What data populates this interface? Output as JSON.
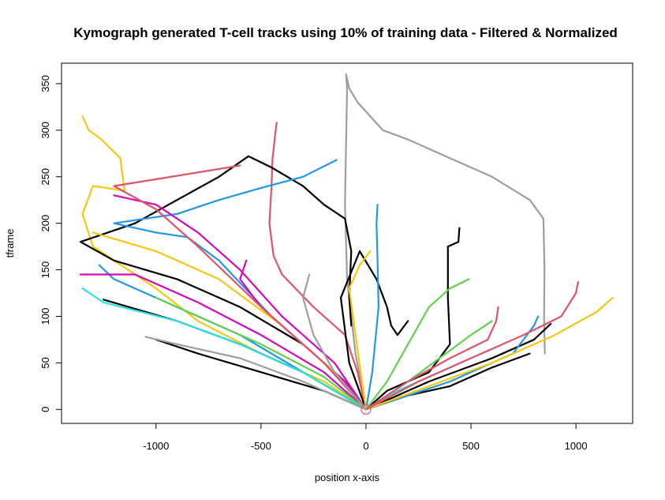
{
  "chart_data": {
    "type": "line",
    "title": "Kymograph generated T-cell tracks using 10% of training data - Filtered & Normalized",
    "xlabel": "position x-axis",
    "ylabel": "tframe",
    "xlim": [
      -1450,
      1270
    ],
    "ylim": [
      -15,
      372
    ],
    "xticks": [
      -1000,
      -500,
      0,
      500,
      1000
    ],
    "yticks": [
      0,
      50,
      100,
      150,
      200,
      250,
      300,
      350
    ],
    "grid": false,
    "legend": "none",
    "origin_marker": {
      "x": 0,
      "y": 0,
      "color": "#DF536B"
    },
    "series": [
      {
        "color": "#9E9E9E",
        "points": [
          [
            0,
            0
          ],
          [
            -50,
            60
          ],
          [
            -90,
            140
          ],
          [
            -100,
            220
          ],
          [
            -90,
            345
          ],
          [
            -95,
            360
          ],
          [
            -80,
            345
          ],
          [
            -40,
            330
          ],
          [
            80,
            300
          ],
          [
            200,
            290
          ],
          [
            400,
            270
          ],
          [
            600,
            250
          ],
          [
            780,
            225
          ],
          [
            845,
            205
          ],
          [
            850,
            150
          ],
          [
            848,
            100
          ],
          [
            852,
            60
          ]
        ]
      },
      {
        "color": "#DF536B",
        "points": [
          [
            0,
            0
          ],
          [
            -40,
            40
          ],
          [
            -100,
            80
          ],
          [
            -250,
            110
          ],
          [
            -400,
            145
          ],
          [
            -440,
            165
          ],
          [
            -460,
            200
          ],
          [
            -450,
            240
          ],
          [
            -445,
            270
          ],
          [
            -430,
            300
          ],
          [
            -425,
            308
          ]
        ]
      },
      {
        "color": "#F5C710",
        "points": [
          [
            0,
            0
          ],
          [
            -200,
            30
          ],
          [
            -500,
            60
          ],
          [
            -800,
            95
          ],
          [
            -1000,
            130
          ],
          [
            -1300,
            175
          ],
          [
            -1350,
            210
          ],
          [
            -1300,
            240
          ],
          [
            -1150,
            235
          ],
          [
            -1170,
            270
          ],
          [
            -1260,
            290
          ],
          [
            -1320,
            300
          ],
          [
            -1350,
            315
          ]
        ]
      },
      {
        "color": "#000000",
        "points": [
          [
            0,
            0
          ],
          [
            -100,
            30
          ],
          [
            -300,
            70
          ],
          [
            -600,
            110
          ],
          [
            -900,
            140
          ],
          [
            -1200,
            160
          ],
          [
            -1360,
            180
          ],
          [
            -1100,
            200
          ],
          [
            -900,
            225
          ],
          [
            -700,
            250
          ],
          [
            -560,
            272
          ],
          [
            -450,
            260
          ],
          [
            -300,
            240
          ],
          [
            -200,
            220
          ],
          [
            -100,
            205
          ],
          [
            -70,
            170
          ],
          [
            -80,
            120
          ],
          [
            -70,
            90
          ]
        ]
      },
      {
        "color": "#000000",
        "points": [
          [
            0,
            0
          ],
          [
            -80,
            50
          ],
          [
            -120,
            120
          ],
          [
            -30,
            170
          ],
          [
            50,
            140
          ],
          [
            100,
            110
          ],
          [
            120,
            90
          ],
          [
            150,
            80
          ],
          [
            200,
            95
          ]
        ]
      },
      {
        "color": "#000000",
        "points": [
          [
            0,
            0
          ],
          [
            100,
            20
          ],
          [
            300,
            40
          ],
          [
            400,
            70
          ],
          [
            390,
            120
          ],
          [
            390,
            175
          ],
          [
            440,
            180
          ],
          [
            445,
            195
          ]
        ]
      },
      {
        "color": "#000000",
        "points": [
          [
            0,
            0
          ],
          [
            200,
            15
          ],
          [
            400,
            25
          ],
          [
            600,
            45
          ],
          [
            780,
            60
          ]
        ]
      },
      {
        "color": "#000000",
        "points": [
          [
            0,
            0
          ],
          [
            -300,
            40
          ],
          [
            -600,
            70
          ],
          [
            -900,
            95
          ],
          [
            -1250,
            118
          ]
        ]
      },
      {
        "color": "#000000",
        "points": [
          [
            0,
            0
          ],
          [
            -200,
            20
          ],
          [
            -500,
            40
          ],
          [
            -800,
            60
          ],
          [
            -1000,
            75
          ]
        ]
      },
      {
        "color": "#000000",
        "points": [
          [
            0,
            0
          ],
          [
            300,
            30
          ],
          [
            600,
            55
          ],
          [
            800,
            75
          ],
          [
            880,
            92
          ]
        ]
      },
      {
        "color": "#2297E6",
        "points": [
          [
            0,
            0
          ],
          [
            30,
            40
          ],
          [
            60,
            110
          ],
          [
            55,
            160
          ],
          [
            50,
            200
          ],
          [
            55,
            220
          ]
        ]
      },
      {
        "color": "#2297E6",
        "points": [
          [
            0,
            0
          ],
          [
            -200,
            50
          ],
          [
            -450,
            100
          ],
          [
            -700,
            160
          ],
          [
            -850,
            185
          ],
          [
            -1000,
            190
          ],
          [
            -1200,
            200
          ],
          [
            -900,
            210
          ],
          [
            -700,
            225
          ],
          [
            -500,
            238
          ],
          [
            -300,
            250
          ],
          [
            -140,
            268
          ]
        ]
      },
      {
        "color": "#2297E6",
        "points": [
          [
            0,
            0
          ],
          [
            -300,
            40
          ],
          [
            -600,
            80
          ],
          [
            -900,
            110
          ],
          [
            -1200,
            140
          ],
          [
            -1270,
            155
          ]
        ]
      },
      {
        "color": "#2297E6",
        "points": [
          [
            0,
            0
          ],
          [
            200,
            15
          ],
          [
            400,
            30
          ],
          [
            550,
            45
          ],
          [
            700,
            60
          ],
          [
            800,
            90
          ],
          [
            820,
            100
          ]
        ]
      },
      {
        "color": "#28E2E5",
        "points": [
          [
            0,
            0
          ],
          [
            -300,
            40
          ],
          [
            -600,
            70
          ],
          [
            -900,
            95
          ],
          [
            -1250,
            115
          ],
          [
            -1350,
            130
          ]
        ]
      },
      {
        "color": "#28E2E5",
        "points": [
          [
            0,
            0
          ],
          [
            150,
            20
          ],
          [
            300,
            35
          ],
          [
            500,
            55
          ],
          [
            650,
            70
          ]
        ]
      },
      {
        "color": "#CD0BBC",
        "points": [
          [
            0,
            0
          ],
          [
            -200,
            40
          ],
          [
            -500,
            80
          ],
          [
            -800,
            115
          ],
          [
            -1100,
            145
          ],
          [
            -1360,
            145
          ]
        ]
      },
      {
        "color": "#CD0BBC",
        "points": [
          [
            0,
            0
          ],
          [
            -150,
            50
          ],
          [
            -400,
            100
          ],
          [
            -600,
            150
          ],
          [
            -800,
            190
          ],
          [
            -1000,
            220
          ],
          [
            -1200,
            230
          ]
        ]
      },
      {
        "color": "#CD0BBC",
        "points": [
          [
            0,
            0
          ],
          [
            -100,
            30
          ],
          [
            -300,
            70
          ],
          [
            -500,
            110
          ],
          [
            -600,
            140
          ],
          [
            -570,
            160
          ]
        ]
      },
      {
        "color": "#61D04F",
        "points": [
          [
            0,
            0
          ],
          [
            100,
            30
          ],
          [
            200,
            70
          ],
          [
            300,
            110
          ],
          [
            400,
            130
          ],
          [
            490,
            140
          ]
        ]
      },
      {
        "color": "#61D04F",
        "points": [
          [
            0,
            0
          ],
          [
            200,
            30
          ],
          [
            350,
            55
          ],
          [
            500,
            80
          ],
          [
            600,
            95
          ]
        ]
      },
      {
        "color": "#61D04F",
        "points": [
          [
            0,
            0
          ],
          [
            -200,
            35
          ],
          [
            -500,
            70
          ],
          [
            -800,
            100
          ],
          [
            -1000,
            120
          ]
        ]
      },
      {
        "color": "#F5C710",
        "points": [
          [
            0,
            0
          ],
          [
            -150,
            40
          ],
          [
            -400,
            90
          ],
          [
            -700,
            140
          ],
          [
            -1000,
            170
          ],
          [
            -1300,
            190
          ]
        ]
      },
      {
        "color": "#F5C710",
        "points": [
          [
            0,
            0
          ],
          [
            300,
            25
          ],
          [
            600,
            50
          ],
          [
            900,
            80
          ],
          [
            1100,
            105
          ],
          [
            1175,
            120
          ]
        ]
      },
      {
        "color": "#F5C710",
        "points": [
          [
            0,
            0
          ],
          [
            -50,
            80
          ],
          [
            -80,
            130
          ],
          [
            -30,
            155
          ],
          [
            20,
            170
          ]
        ]
      },
      {
        "color": "#DF536B",
        "points": [
          [
            0,
            0
          ],
          [
            250,
            30
          ],
          [
            500,
            55
          ],
          [
            750,
            80
          ],
          [
            930,
            100
          ],
          [
            1000,
            125
          ],
          [
            1010,
            137
          ]
        ]
      },
      {
        "color": "#DF536B",
        "points": [
          [
            0,
            0
          ],
          [
            -200,
            50
          ],
          [
            -500,
            110
          ],
          [
            -800,
            175
          ],
          [
            -1000,
            215
          ],
          [
            -1200,
            240
          ],
          [
            -600,
            262
          ]
        ]
      },
      {
        "color": "#DF536B",
        "points": [
          [
            0,
            0
          ],
          [
            200,
            30
          ],
          [
            400,
            55
          ],
          [
            580,
            75
          ],
          [
            620,
            95
          ],
          [
            630,
            110
          ]
        ]
      },
      {
        "color": "#9E9E9E",
        "points": [
          [
            0,
            0
          ],
          [
            -300,
            30
          ],
          [
            -600,
            55
          ],
          [
            -900,
            70
          ],
          [
            -1050,
            78
          ]
        ]
      },
      {
        "color": "#9E9E9E",
        "points": [
          [
            0,
            0
          ],
          [
            -150,
            40
          ],
          [
            -250,
            80
          ],
          [
            -300,
            120
          ],
          [
            -270,
            145
          ]
        ]
      }
    ]
  }
}
